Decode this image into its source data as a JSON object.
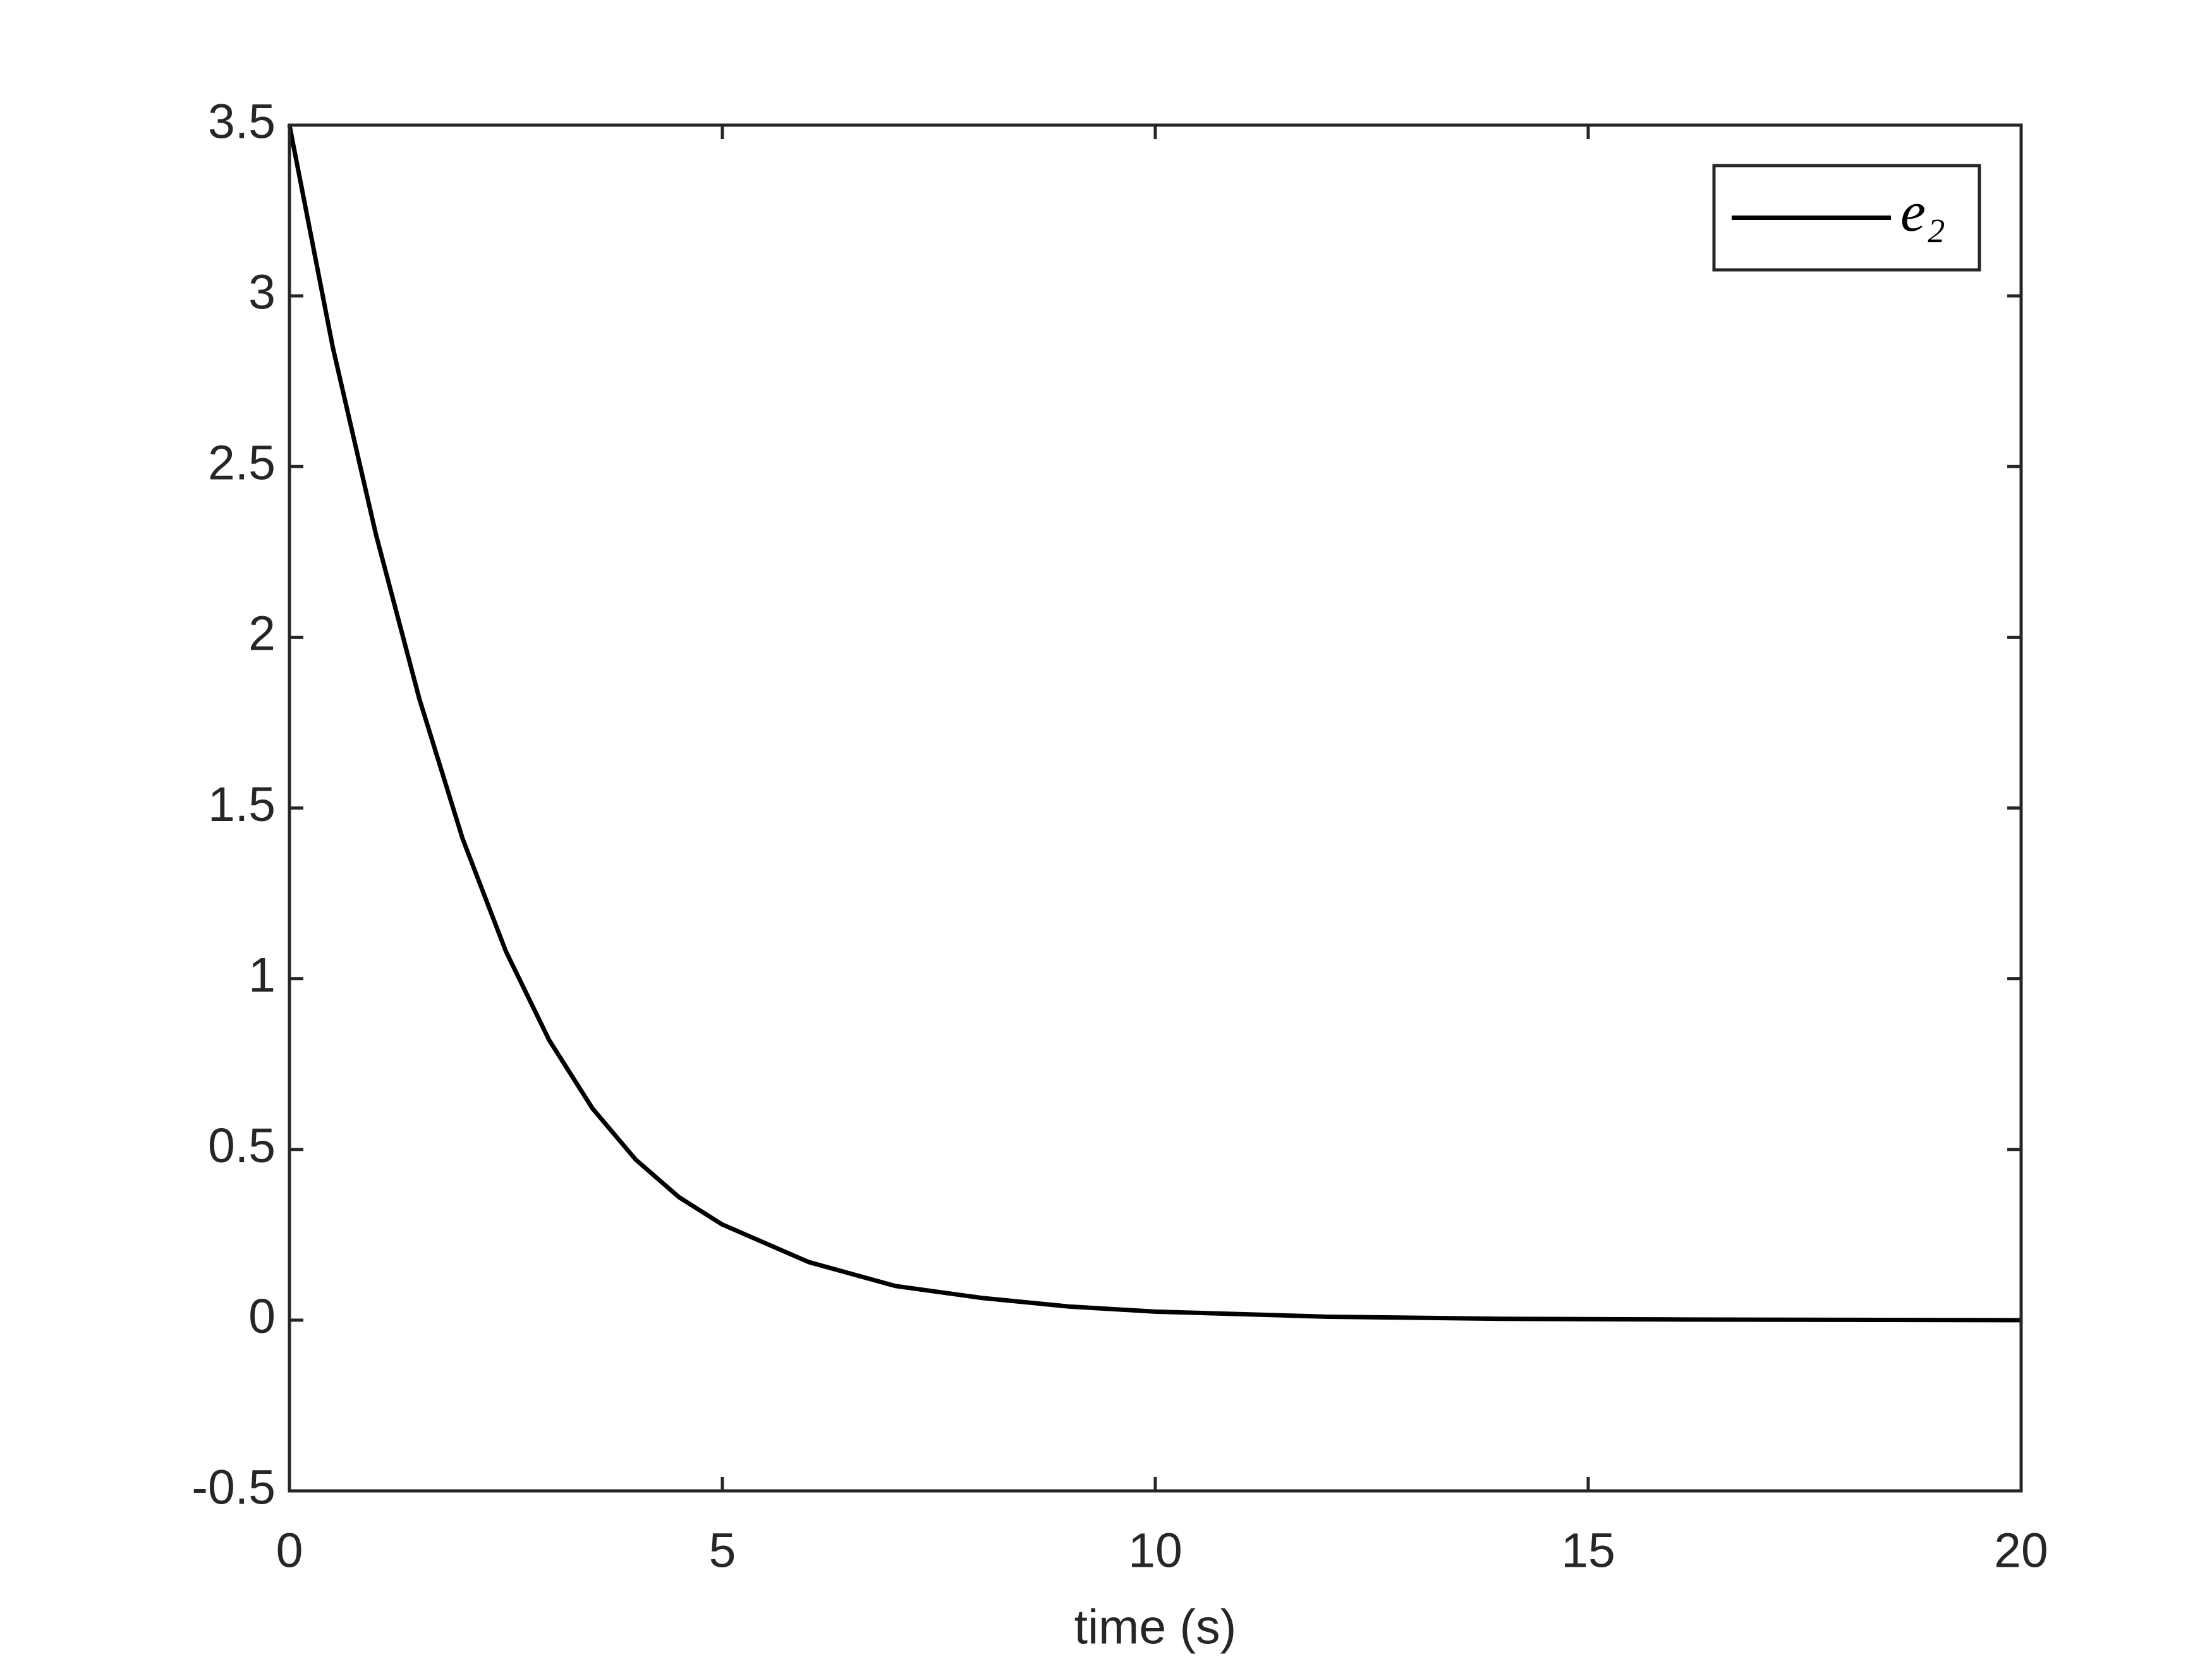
{
  "chart_data": {
    "type": "line",
    "xlabel": "time (s)",
    "x": [
      0,
      0.5,
      1,
      1.5,
      2,
      2.5,
      3,
      3.5,
      4,
      4.5,
      5,
      6,
      7,
      8,
      9,
      10,
      12,
      14,
      16,
      18,
      20
    ],
    "series": [
      {
        "name": "e₂",
        "color": "#000000",
        "values": [
          3.5,
          2.85,
          2.3,
          1.82,
          1.41,
          1.08,
          0.82,
          0.62,
          0.47,
          0.36,
          0.28,
          0.17,
          0.1,
          0.065,
          0.04,
          0.025,
          0.01,
          0.004,
          0.002,
          0.001,
          0
        ]
      }
    ],
    "xlim": [
      0,
      20
    ],
    "xticks": [
      0,
      5,
      10,
      15,
      20
    ],
    "ylim": [
      -0.5,
      3.5
    ],
    "yticks": [
      -0.5,
      0,
      0.5,
      1,
      1.5,
      2,
      2.5,
      3,
      3.5
    ],
    "grid": false,
    "legend": "upper-right"
  }
}
